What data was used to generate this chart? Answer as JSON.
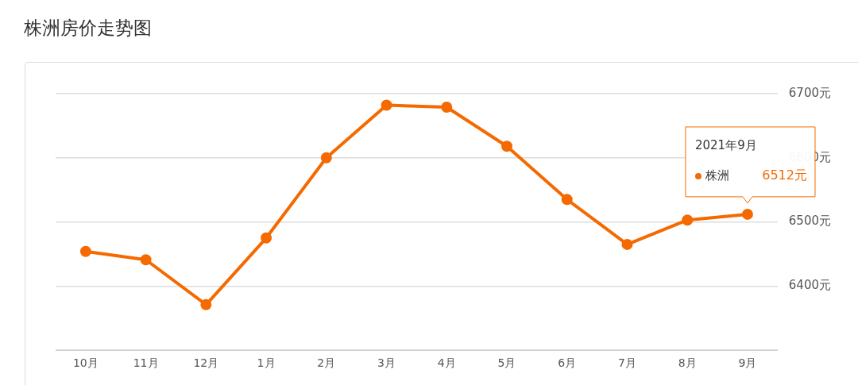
{
  "chart_data": {
    "type": "line",
    "title": "株洲房价走势图",
    "categories": [
      "10月",
      "11月",
      "12月",
      "1月",
      "2月",
      "3月",
      "4月",
      "5月",
      "6月",
      "7月",
      "8月",
      "9月"
    ],
    "series": [
      {
        "name": "株洲",
        "color": "#f56a00",
        "values": [
          6454,
          6441,
          6371,
          6475,
          6600,
          6682,
          6679,
          6618,
          6535,
          6465,
          6503,
          6512
        ],
        "value_labels": [
          null,
          null,
          null,
          null,
          null,
          null,
          null,
          null,
          null,
          null,
          null,
          "6512元"
        ]
      }
    ],
    "ylim": [
      6300,
      6700
    ],
    "yticks": [
      {
        "value": 6300,
        "label": null
      },
      {
        "value": 6400,
        "label": "6400元"
      },
      {
        "value": 6500,
        "label": "6500元"
      },
      {
        "value": 6600,
        "label": "6600元"
      },
      {
        "value": 6700,
        "label": "6700元"
      }
    ],
    "annotations": [
      "2021年9月"
    ],
    "grid": "y",
    "legend": "top right",
    "marker": "circle",
    "line_style": "solid"
  }
}
